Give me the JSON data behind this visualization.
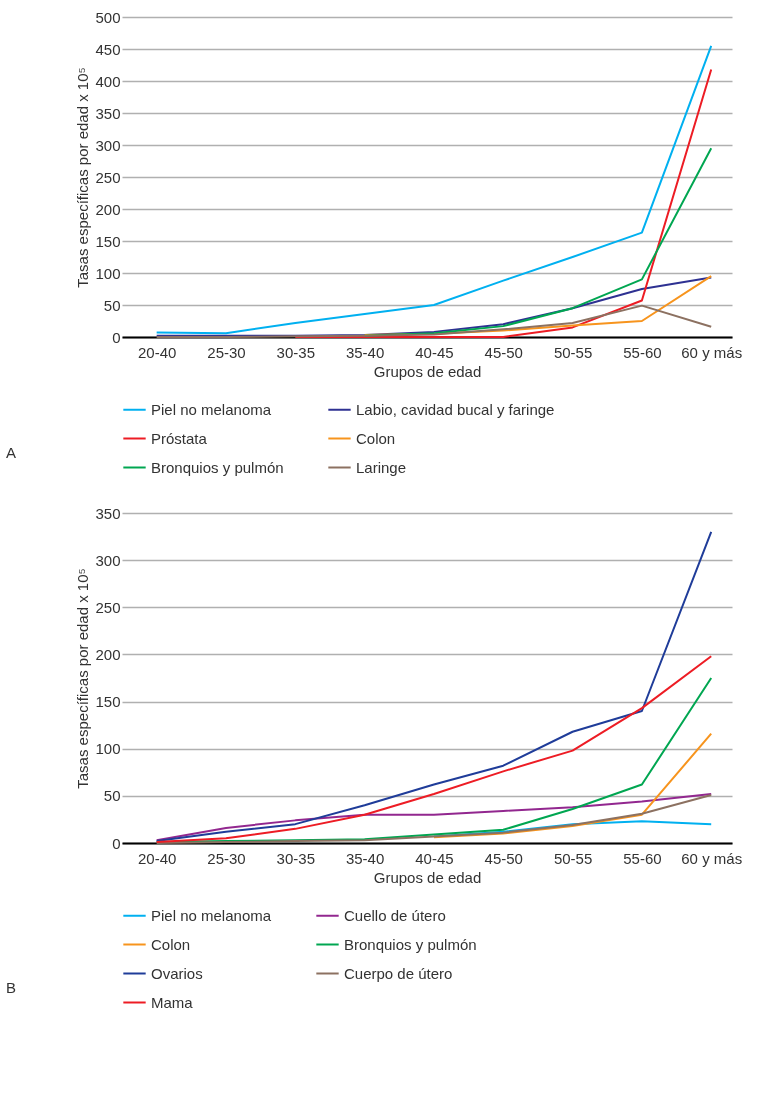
{
  "chart_data": [
    {
      "type": "line",
      "categories": [
        "20-40",
        "25-30",
        "30-35",
        "35-40",
        "40-45",
        "45-50",
        "50-55",
        "55-60",
        "60 y más"
      ],
      "xlabel": "Grupos de edad",
      "ylabel": "Tasas específicas por edad x 10⁵",
      "ylim": [
        0,
        500
      ],
      "yticks": [
        0,
        50,
        100,
        150,
        200,
        250,
        300,
        350,
        400,
        450,
        500
      ],
      "grid": "y",
      "legend": "bottom",
      "marker": "none",
      "line_style": "solid",
      "annotations": [
        "A"
      ],
      "series": [
        {
          "name": "Piel no melanoma",
          "color": "#00b0f0",
          "values": [
            7,
            6,
            22,
            36,
            50,
            88,
            125,
            163,
            455
          ]
        },
        {
          "name": "Labio, cavidad bucal y faringe",
          "color": "#2e3192",
          "values": [
            2,
            2,
            2,
            3,
            8,
            20,
            45,
            75,
            93
          ]
        },
        {
          "name": "Próstata",
          "color": "#ed1c24",
          "values": [
            null,
            null,
            0,
            0,
            0,
            0,
            15,
            57,
            418
          ]
        },
        {
          "name": "Colon",
          "color": "#f7941d",
          "values": [
            null,
            null,
            null,
            3,
            5,
            10,
            18,
            25,
            95
          ]
        },
        {
          "name": "Bronquios y pulmón",
          "color": "#00a651",
          "values": [
            null,
            null,
            null,
            2,
            6,
            17,
            45,
            90,
            295
          ]
        },
        {
          "name": "Laringe",
          "color": "#8c7161",
          "values": [
            0,
            0,
            1,
            2,
            4,
            12,
            22,
            49,
            16
          ]
        }
      ]
    },
    {
      "type": "line",
      "categories": [
        "20-40",
        "25-30",
        "30-35",
        "35-40",
        "40-45",
        "45-50",
        "50-55",
        "55-60",
        "60 y más"
      ],
      "xlabel": "Grupos de edad",
      "ylabel": "Tasas específicas por edad x 10⁵",
      "ylim": [
        0,
        350
      ],
      "yticks": [
        0,
        50,
        100,
        150,
        200,
        250,
        300,
        350
      ],
      "grid": "y",
      "legend": "bottom",
      "marker": "none",
      "line_style": "solid",
      "annotations": [
        "B"
      ],
      "series": [
        {
          "name": "Piel no melanoma",
          "color": "#00b0f0",
          "values": [
            null,
            null,
            null,
            null,
            7,
            12,
            20,
            23,
            20
          ]
        },
        {
          "name": "Cuello de útero",
          "color": "#92278f",
          "values": [
            3,
            16,
            24,
            30,
            30,
            34,
            38,
            44,
            52
          ]
        },
        {
          "name": "Colon",
          "color": "#f7941d",
          "values": [
            null,
            null,
            null,
            null,
            6,
            10,
            18,
            30,
            116
          ]
        },
        {
          "name": "Bronquios y pulmón",
          "color": "#00a651",
          "values": [
            1,
            2,
            3,
            4,
            9,
            14,
            36,
            62,
            175
          ]
        },
        {
          "name": "Ovarios",
          "color": "#1f3c99",
          "values": [
            2,
            12,
            20,
            40,
            62,
            82,
            118,
            140,
            330
          ]
        },
        {
          "name": "Cuerpo de útero",
          "color": "#8c7161",
          "values": [
            0,
            1,
            2,
            3,
            7,
            11,
            19,
            31,
            51
          ]
        },
        {
          "name": "Mama",
          "color": "#ed1c24",
          "values": [
            1,
            5,
            15,
            30,
            52,
            76,
            98,
            143,
            198
          ]
        }
      ]
    }
  ]
}
